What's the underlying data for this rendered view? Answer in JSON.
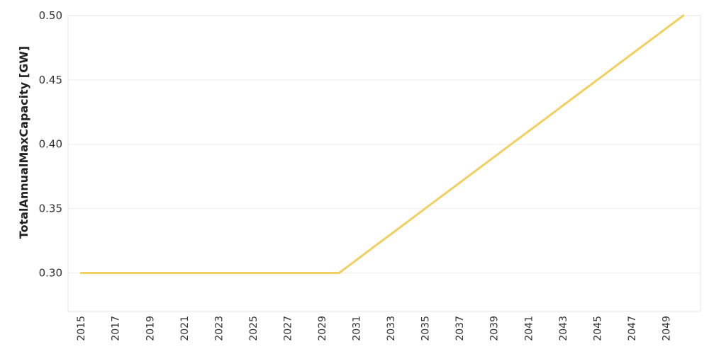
{
  "chart_data": {
    "type": "line",
    "title": "",
    "xlabel": "",
    "ylabel": "TotalAnnualMaxCapacity [GW]",
    "x": [
      2015,
      2016,
      2017,
      2018,
      2019,
      2020,
      2021,
      2022,
      2023,
      2024,
      2025,
      2026,
      2027,
      2028,
      2029,
      2030,
      2031,
      2032,
      2033,
      2034,
      2035,
      2036,
      2037,
      2038,
      2039,
      2040,
      2041,
      2042,
      2043,
      2044,
      2045,
      2046,
      2047,
      2048,
      2049,
      2050
    ],
    "series": [
      {
        "values": [
          0.3,
          0.3,
          0.3,
          0.3,
          0.3,
          0.3,
          0.3,
          0.3,
          0.3,
          0.3,
          0.3,
          0.3,
          0.3,
          0.3,
          0.3,
          0.3,
          0.31,
          0.32,
          0.33,
          0.34,
          0.35,
          0.36,
          0.37,
          0.38,
          0.39,
          0.4,
          0.41,
          0.42,
          0.43,
          0.44,
          0.45,
          0.46,
          0.47,
          0.48,
          0.49,
          0.5
        ],
        "color": "#f0d060"
      }
    ],
    "x_ticks": [
      "2015",
      "2017",
      "2019",
      "2021",
      "2023",
      "2025",
      "2027",
      "2029",
      "2031",
      "2033",
      "2035",
      "2037",
      "2039",
      "2041",
      "2043",
      "2045",
      "2047",
      "2049"
    ],
    "y_ticks": [
      "0.30",
      "0.35",
      "0.40",
      "0.45",
      "0.50"
    ],
    "xlim": [
      2014.25,
      2051
    ],
    "ylim": [
      0.27,
      0.5
    ],
    "grid": true,
    "legend": "none"
  }
}
